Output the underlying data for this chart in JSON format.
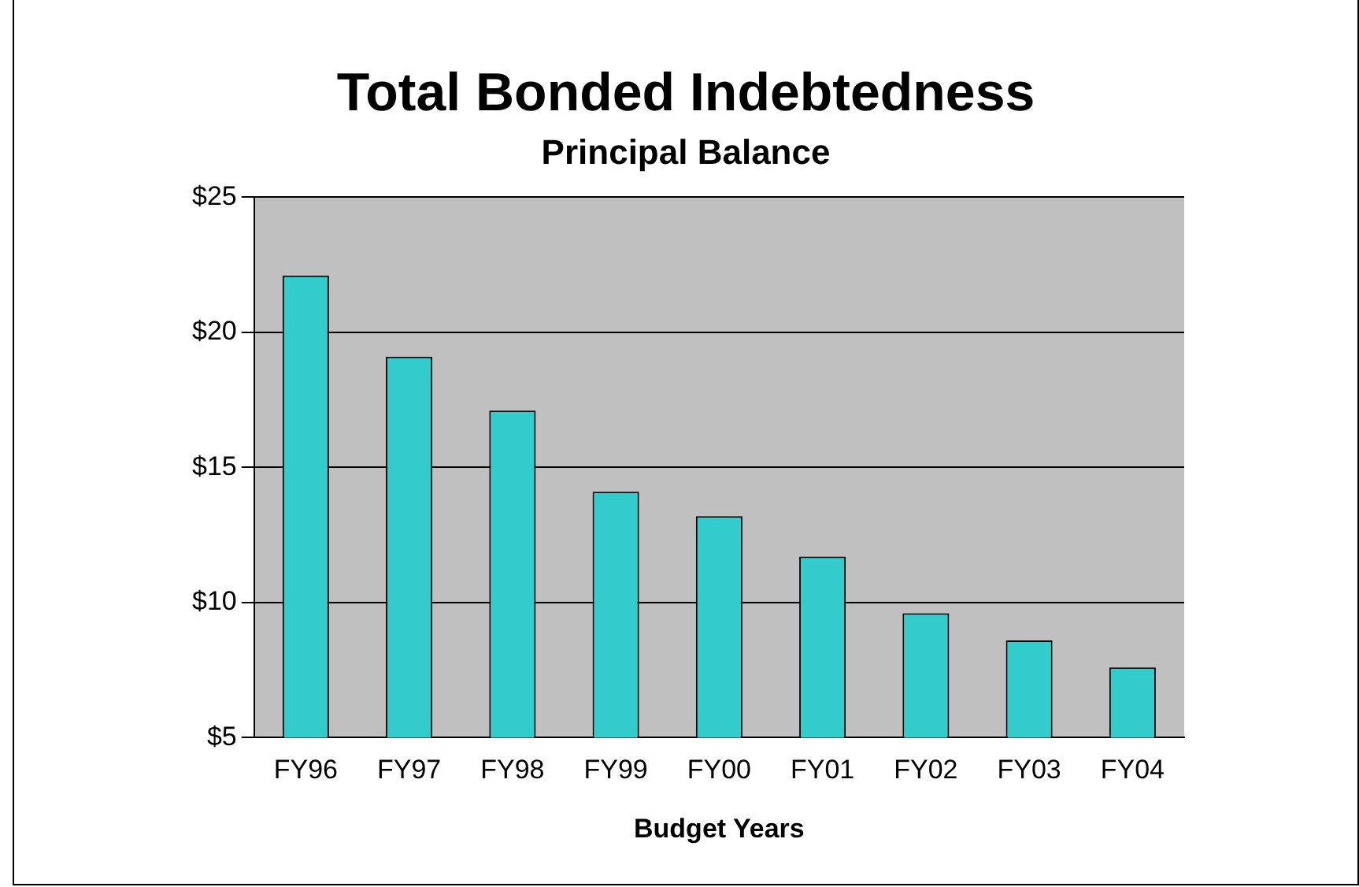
{
  "chart_data": {
    "type": "bar",
    "title": "Total Bonded Indebtedness",
    "subtitle": "Principal Balance",
    "xlabel": "Budget Years",
    "categories": [
      "FY96",
      "FY97",
      "FY98",
      "FY99",
      "FY00",
      "FY01",
      "FY02",
      "FY03",
      "FY04"
    ],
    "values": [
      22.1,
      19.1,
      17.1,
      14.1,
      13.2,
      11.7,
      9.6,
      8.6,
      7.6
    ],
    "color": "#33cccc",
    "ylim": [
      5,
      25
    ],
    "yticks": [
      {
        "value": 5,
        "label": "$5"
      },
      {
        "value": 10,
        "label": "$10"
      },
      {
        "value": 15,
        "label": "$15"
      },
      {
        "value": 20,
        "label": "$20"
      },
      {
        "value": 25,
        "label": "$25"
      }
    ],
    "grid": "y"
  }
}
